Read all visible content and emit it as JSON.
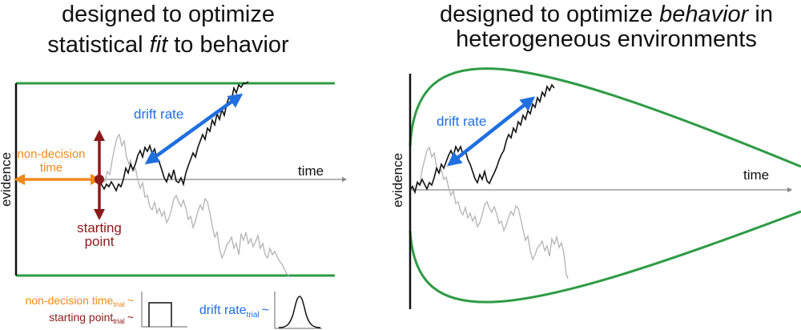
{
  "left_panel": {
    "title_line1": "designed to optimize",
    "title_line2_pre": "statistical ",
    "title_line2_em": "fit",
    "title_line2_post": " to behavior",
    "y_axis_label": "evidence",
    "x_axis_label": "time",
    "drift_rate_label": "drift rate",
    "nondecision_label_line1": "non-decision",
    "nondecision_label_line2": "time",
    "starting_point_label_line1": "starting",
    "starting_point_label_line2": "point"
  },
  "right_panel": {
    "title_line1_pre": "designed to optimize ",
    "title_line1_em": "behavior",
    "title_line1_post": " in",
    "title_line2": "heterogeneous environments",
    "y_axis_label": "evidence",
    "x_axis_label": "time",
    "drift_rate_label": "drift rate"
  },
  "legend": {
    "nondecision_trial_main": "non-decision time",
    "nondecision_trial_sub": "trial",
    "starting_point_trial_main": "starting point",
    "starting_point_trial_sub": "trial",
    "drift_rate_trial_main": "drift rate",
    "drift_rate_trial_sub": "trial",
    "tilde": "~"
  },
  "colors": {
    "boundary": "#2e9b45",
    "drift_arrow": "#1f6fe0",
    "nondecision": "#f08a1c",
    "starting_point": "#8b1a1a",
    "black_path": "#111111",
    "gray_path": "#b3b3b3",
    "axis": "#888888"
  }
}
